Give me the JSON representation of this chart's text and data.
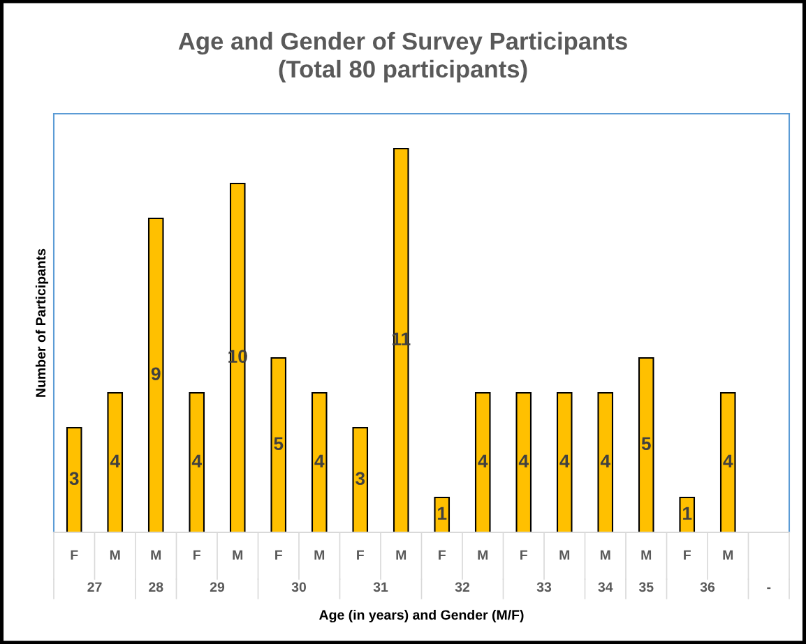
{
  "chart_data": {
    "type": "bar",
    "title": "Age and Gender of Survey Participants\n(Total 80 participants)",
    "xlabel": "Age (in years) and Gender (M/F)",
    "ylabel": "Number of Participants",
    "categories": [
      "F",
      "M",
      "M",
      "F",
      "M",
      "F",
      "M",
      "F",
      "M",
      "F",
      "M",
      "F",
      "M",
      "M",
      "M",
      "F",
      "M",
      null
    ],
    "values": [
      3,
      4,
      9,
      4,
      10,
      5,
      4,
      3,
      11,
      1,
      4,
      4,
      4,
      4,
      5,
      1,
      4,
      null
    ],
    "color": "#ffc000",
    "data_labels": true,
    "tick_labels": "x",
    "annotations": [
      "27",
      "28",
      "29",
      "30",
      "31",
      "32",
      "33",
      "34",
      "35",
      "36",
      "-"
    ]
  }
}
